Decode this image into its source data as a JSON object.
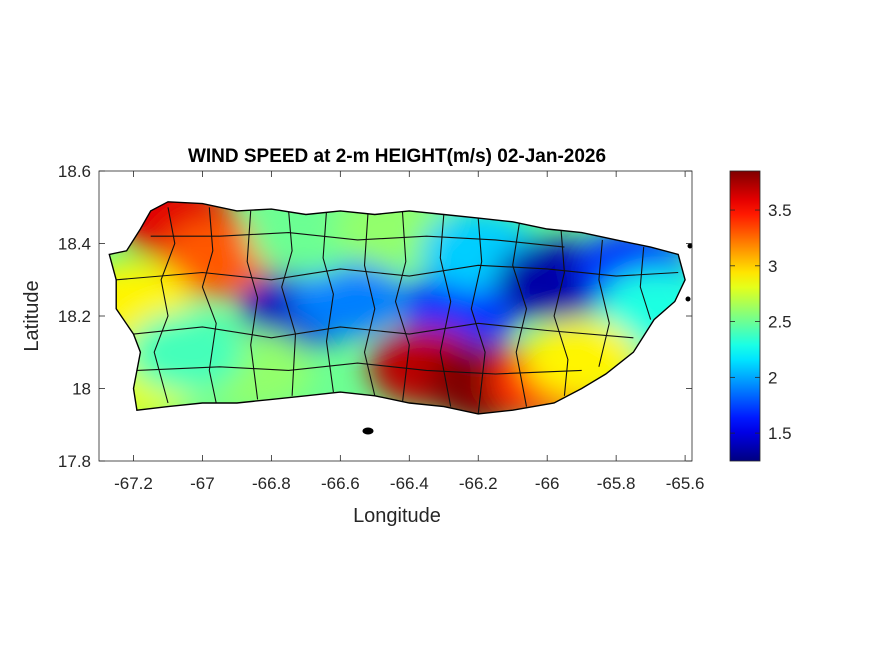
{
  "chart_data": {
    "type": "heatmap",
    "title": "WIND SPEED at 2-m HEIGHT(m/s) 02-Jan-2026",
    "xlabel": "Longitude",
    "ylabel": "Latitude",
    "xlim": [
      -67.3,
      -65.58
    ],
    "ylim": [
      17.8,
      18.6
    ],
    "x_ticks": [
      -67.2,
      -67,
      -66.8,
      -66.6,
      -66.4,
      -66.2,
      -66,
      -65.8,
      -65.6
    ],
    "x_tick_labels": [
      "-67.2",
      "-67",
      "-66.8",
      "-66.6",
      "-66.4",
      "-66.2",
      "-66",
      "-65.8",
      "-65.6"
    ],
    "y_ticks": [
      17.8,
      18,
      18.2,
      18.4,
      18.6
    ],
    "y_tick_labels": [
      "17.8",
      "18",
      "18.2",
      "18.4",
      "18.6"
    ],
    "colorbar": {
      "colormap": "jet",
      "clim": [
        1.25,
        3.85
      ],
      "ticks": [
        1.5,
        2,
        2.5,
        3,
        3.5
      ],
      "tick_labels": [
        "1.5",
        "2",
        "2.5",
        "3",
        "3.5"
      ],
      "location": "right"
    },
    "grid": false,
    "field_regions": [
      {
        "lon": -67.08,
        "lat": 18.47,
        "value": 3.6
      },
      {
        "lon": -66.95,
        "lat": 18.36,
        "value": 3.3
      },
      {
        "lon": -67.2,
        "lat": 18.24,
        "value": 2.9
      },
      {
        "lon": -67.18,
        "lat": 18.02,
        "value": 2.8
      },
      {
        "lon": -66.72,
        "lat": 18.22,
        "value": 1.4
      },
      {
        "lon": -66.58,
        "lat": 18.25,
        "value": 1.9
      },
      {
        "lon": -66.7,
        "lat": 18.42,
        "value": 2.5
      },
      {
        "lon": -66.45,
        "lat": 18.44,
        "value": 2.6
      },
      {
        "lon": -66.25,
        "lat": 18.22,
        "value": 1.7
      },
      {
        "lon": -66.2,
        "lat": 18.38,
        "value": 2.1
      },
      {
        "lon": -65.98,
        "lat": 18.3,
        "value": 1.35
      },
      {
        "lon": -65.75,
        "lat": 18.33,
        "value": 1.7
      },
      {
        "lon": -65.68,
        "lat": 18.22,
        "value": 2.3
      },
      {
        "lon": -66.35,
        "lat": 18.06,
        "value": 3.7
      },
      {
        "lon": -66.18,
        "lat": 18.01,
        "value": 3.85
      },
      {
        "lon": -66.0,
        "lat": 18.02,
        "value": 3.4
      },
      {
        "lon": -65.9,
        "lat": 18.08,
        "value": 2.9
      },
      {
        "lon": -66.85,
        "lat": 18.05,
        "value": 2.6
      },
      {
        "lon": -67.05,
        "lat": 18.1,
        "value": 2.4
      }
    ]
  }
}
